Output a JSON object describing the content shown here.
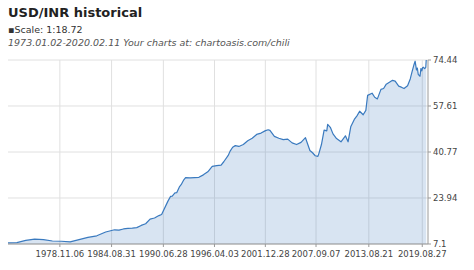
{
  "chart_data": {
    "type": "area",
    "title": "USD/INR historical",
    "subtitle": [
      "▪Scale: 1:18.72",
      "1973.01.02-2020.02.11  Your charts at: chartoasis.com/chili"
    ],
    "color": "#3a7abf",
    "grid": true,
    "xlim": [
      1973.0,
      2020.3
    ],
    "xticks": [
      {
        "value": 1978.842,
        "label": "1978.11.06"
      },
      {
        "value": 1984.664,
        "label": "1984.08.31"
      },
      {
        "value": 1990.497,
        "label": "1990.06.28"
      },
      {
        "value": 1996.253,
        "label": "1996.04.03"
      },
      {
        "value": 2001.981,
        "label": "2001.12.28"
      },
      {
        "value": 2007.689,
        "label": "2007.09.07"
      },
      {
        "value": 2013.636,
        "label": "2013.08.21"
      },
      {
        "value": 2019.653,
        "label": "2019.08.27"
      }
    ],
    "ylim": [
      7.1,
      74.44
    ],
    "yticks": [
      74.44,
      57.61,
      40.77,
      23.94,
      7.1
    ],
    "x": [
      1973.0,
      1974.0,
      1975.0,
      1976.0,
      1977.0,
      1978.0,
      1979.0,
      1980.0,
      1981.0,
      1982.0,
      1983.0,
      1984.0,
      1985.0,
      1985.5,
      1986.0,
      1986.5,
      1987.0,
      1987.5,
      1988.0,
      1988.5,
      1989.0,
      1989.5,
      1990.0,
      1990.3,
      1991.0,
      1991.3,
      1991.5,
      1991.8,
      1992.0,
      1992.3,
      1992.5,
      1992.8,
      1993.0,
      1993.5,
      1994.0,
      1994.5,
      1995.0,
      1995.5,
      1996.0,
      1996.5,
      1997.0,
      1997.3,
      1997.8,
      1998.0,
      1998.3,
      1998.6,
      1999.0,
      1999.5,
      2000.0,
      2000.5,
      2001.0,
      2001.5,
      2002.0,
      2002.3,
      2002.5,
      2003.0,
      2003.5,
      2004.0,
      2004.5,
      2005.0,
      2005.5,
      2006.0,
      2006.5,
      2007.0,
      2007.3,
      2007.6,
      2007.9,
      2008.0,
      2008.3,
      2008.6,
      2008.9,
      2009.0,
      2009.3,
      2009.6,
      2010.0,
      2010.5,
      2011.0,
      2011.3,
      2011.6,
      2012.0,
      2012.3,
      2012.6,
      2013.0,
      2013.3,
      2013.5,
      2014.0,
      2014.3,
      2014.6,
      2015.0,
      2015.3,
      2015.6,
      2016.0,
      2016.3,
      2016.6,
      2017.0,
      2017.3,
      2017.6,
      2018.0,
      2018.3,
      2018.5,
      2018.7,
      2018.85,
      2018.9,
      2019.0,
      2019.1,
      2019.2,
      2019.4,
      2019.5,
      2019.6,
      2019.7,
      2019.8,
      2019.9,
      2020.0,
      2020.05,
      2020.1
    ],
    "values": [
      7.5,
      7.6,
      8.4,
      8.9,
      8.7,
      8.2,
      8.1,
      7.9,
      8.7,
      9.5,
      10.1,
      11.5,
      12.3,
      12.2,
      12.6,
      12.8,
      12.9,
      13.1,
      13.9,
      14.5,
      16.2,
      16.6,
      17.5,
      17.9,
      22.7,
      24.5,
      24.6,
      25.8,
      25.9,
      28.0,
      28.8,
      30.6,
      31.4,
      31.3,
      31.4,
      31.5,
      32.4,
      33.5,
      35.5,
      35.8,
      36.0,
      37.2,
      39.5,
      41.0,
      42.5,
      43.1,
      42.8,
      43.5,
      44.9,
      45.8,
      47.2,
      47.7,
      48.6,
      48.9,
      48.7,
      46.5,
      45.8,
      45.3,
      45.5,
      44.1,
      43.5,
      44.3,
      46.0,
      41.3,
      40.5,
      39.4,
      39.2,
      40.1,
      43.5,
      48.8,
      48.5,
      50.9,
      49.8,
      47.4,
      45.7,
      44.5,
      46.7,
      44.5,
      50.0,
      52.7,
      54.0,
      55.7,
      54.4,
      56.0,
      61.5,
      62.3,
      60.8,
      60.2,
      63.7,
      64.0,
      65.6,
      66.4,
      67.0,
      66.7,
      64.9,
      64.5,
      64.0,
      65.0,
      67.5,
      70.1,
      72.5,
      74.0,
      72.9,
      70.8,
      71.5,
      69.2,
      68.5,
      71.3,
      70.5,
      71.7,
      71.8,
      71.3,
      71.5,
      71.8,
      74.44
    ]
  }
}
